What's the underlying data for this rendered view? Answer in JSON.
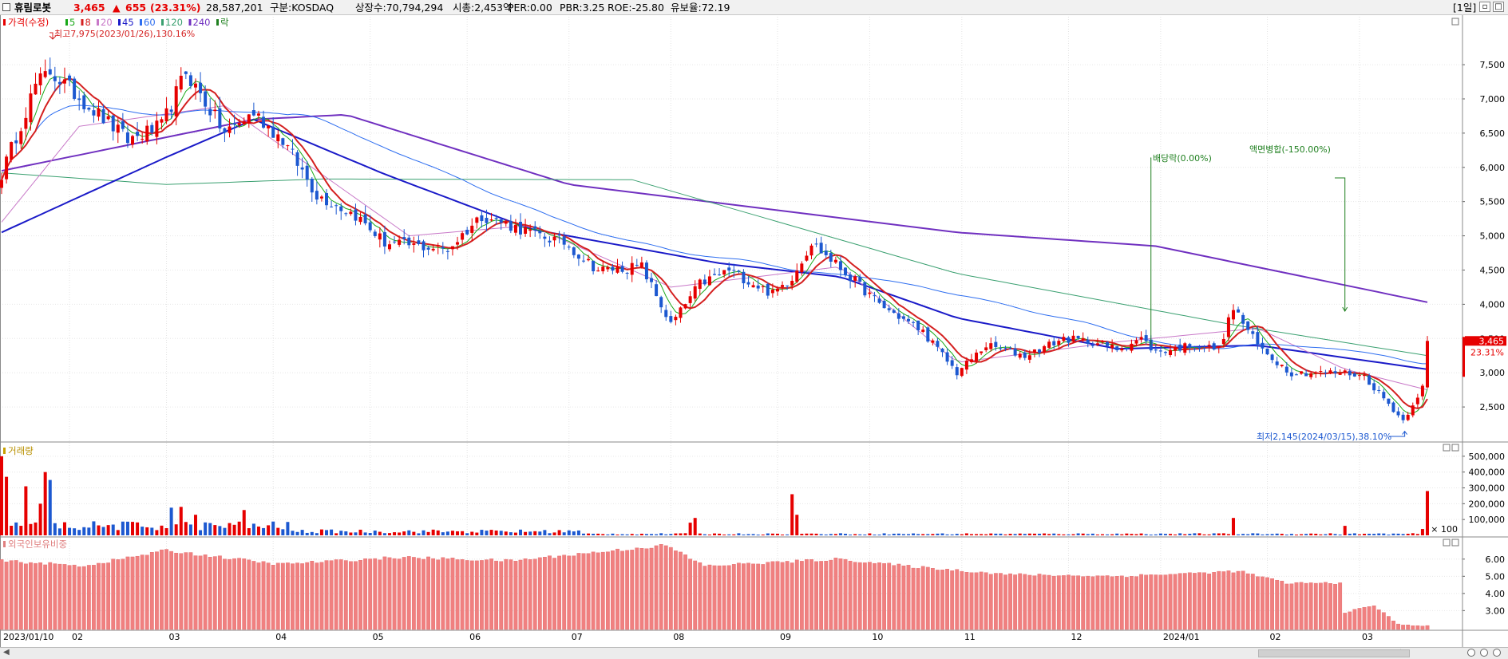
{
  "header": {
    "name": "휴림로봇",
    "price": "3,465",
    "change_arrow": "▲",
    "change": "655",
    "change_pct": "(23.31%)",
    "volume": "28,587,201",
    "market": "구분:KOSDAQ",
    "shares": "상장수:70,794,294",
    "mktcap": "시총:2,453억",
    "per": "PER:0.00",
    "pbr": "PBR:3.25",
    "roe": "ROE:-25.80",
    "float": "유보율:72.19",
    "period": "[1일]",
    "up_color": "#e60000",
    "down_color": "#1c58d0"
  },
  "legend": {
    "price_label": "가격(수정)",
    "ma_items": [
      {
        "label": "5",
        "color": "#18a818"
      },
      {
        "label": "8",
        "color": "#d42020"
      },
      {
        "label": "20",
        "color": "#c878c8"
      },
      {
        "label": "45",
        "color": "#1a1ac8"
      },
      {
        "label": "60",
        "color": "#2e6ef0"
      },
      {
        "label": "120",
        "color": "#3aa070"
      },
      {
        "label": "240",
        "color": "#7030c0"
      },
      {
        "label": "락",
        "color": "#208020"
      }
    ],
    "volume_label": "거래량",
    "foreign_label": "외국인보유비중"
  },
  "annotations": {
    "high": "최고7,975(2023/01/26),130.16%",
    "low": "최저2,145(2024/03/15),38.10%",
    "dividend": "배당락(0.00%)",
    "merge": "액면병합(-150.00%)"
  },
  "current_price_tag": {
    "price": "3,465",
    "pct": "23.31%"
  },
  "chart_data": [
    {
      "type": "candlestick",
      "title": "가격(수정)",
      "ylim": [
        2000,
        8200
      ],
      "yticks": [
        2500,
        3000,
        3500,
        4000,
        4500,
        5000,
        5500,
        6000,
        6500,
        7000,
        7500
      ],
      "ytick_labels": [
        "2,500",
        "3,000",
        "3,500",
        "4,000",
        "4,500",
        "5,000",
        "5,500",
        "6,000",
        "6,500",
        "7,000",
        "7,500"
      ],
      "close_path": [
        [
          "2023-01-10",
          5900
        ],
        [
          "2023-01-19",
          7200
        ],
        [
          "2023-01-26",
          7400
        ],
        [
          "2023-02-07",
          6900
        ],
        [
          "2023-02-17",
          6400
        ],
        [
          "2023-02-28",
          6600
        ],
        [
          "2023-03-08",
          7400
        ],
        [
          "2023-03-20",
          6500
        ],
        [
          "2023-03-28",
          6800
        ],
        [
          "2023-04-05",
          6400
        ],
        [
          "2023-04-14",
          5600
        ],
        [
          "2023-04-26",
          5300
        ],
        [
          "2023-05-08",
          4900
        ],
        [
          "2023-05-25",
          4800
        ],
        [
          "2023-06-07",
          5300
        ],
        [
          "2023-06-21",
          5050
        ],
        [
          "2023-06-30",
          4900
        ],
        [
          "2023-07-11",
          4500
        ],
        [
          "2023-07-24",
          4550
        ],
        [
          "2023-08-01",
          3700
        ],
        [
          "2023-08-09",
          4300
        ],
        [
          "2023-08-18",
          4500
        ],
        [
          "2023-08-31",
          4150
        ],
        [
          "2023-09-06",
          4400
        ],
        [
          "2023-09-12",
          4900
        ],
        [
          "2023-09-22",
          4400
        ],
        [
          "2023-10-06",
          4000
        ],
        [
          "2023-10-20",
          3600
        ],
        [
          "2023-10-31",
          3000
        ],
        [
          "2023-11-08",
          3400
        ],
        [
          "2023-11-20",
          3250
        ],
        [
          "2023-11-30",
          3500
        ],
        [
          "2023-12-08",
          3450
        ],
        [
          "2023-12-15",
          3350
        ],
        [
          "2023-12-22",
          3500
        ],
        [
          "2023-12-28",
          3300
        ],
        [
          "2024-01-10",
          3400
        ],
        [
          "2024-01-18",
          3350
        ],
        [
          "2024-01-23",
          3950
        ],
        [
          "2024-01-30",
          3400
        ],
        [
          "2024-02-06",
          3100
        ],
        [
          "2024-02-08",
          3000
        ],
        [
          "2024-02-27",
          3000
        ],
        [
          "2024-03-05",
          2950
        ],
        [
          "2024-03-15",
          2300
        ],
        [
          "2024-03-21",
          2800
        ],
        [
          "2024-03-22",
          3465
        ]
      ],
      "ma_levels": {
        "ma240": [
          [
            "2023-01-10",
            5950
          ],
          [
            "2023-03-28",
            6700
          ],
          [
            "2023-04-24",
            6770
          ],
          [
            "2023-07-03",
            5750
          ],
          [
            "2023-10-31",
            5050
          ],
          [
            "2023-12-28",
            4850
          ],
          [
            "2024-03-22",
            4030
          ]
        ],
        "ma120": [
          [
            "2023-01-10",
            5920
          ],
          [
            "2023-03-01",
            5750
          ],
          [
            "2023-04-17",
            5830
          ],
          [
            "2023-07-20",
            5820
          ],
          [
            "2023-10-31",
            4450
          ],
          [
            "2024-01-23",
            3700
          ],
          [
            "2024-03-22",
            3250
          ]
        ],
        "ma45": [
          [
            "2023-01-10",
            5050
          ],
          [
            "2023-03-01",
            6150
          ],
          [
            "2023-03-28",
            6700
          ],
          [
            "2023-05-08",
            5900
          ],
          [
            "2023-06-21",
            5100
          ],
          [
            "2023-08-16",
            4600
          ],
          [
            "2023-09-20",
            4400
          ],
          [
            "2023-10-31",
            3800
          ],
          [
            "2023-12-15",
            3350
          ],
          [
            "2024-01-30",
            3400
          ],
          [
            "2024-03-22",
            3050
          ]
        ],
        "ma20": [
          [
            "2023-01-10",
            5200
          ],
          [
            "2023-02-03",
            6600
          ],
          [
            "2023-03-20",
            6900
          ],
          [
            "2023-05-15",
            5000
          ],
          [
            "2023-06-21",
            5150
          ],
          [
            "2023-08-01",
            4250
          ],
          [
            "2023-09-20",
            4550
          ],
          [
            "2023-10-31",
            3150
          ],
          [
            "2023-12-15",
            3450
          ],
          [
            "2024-01-30",
            3650
          ],
          [
            "2024-02-27",
            3050
          ],
          [
            "2024-03-22",
            2750
          ]
        ]
      },
      "annotations": {
        "high": {
          "date": "2023-01-26",
          "value": 7975
        },
        "low": {
          "date": "2024-03-15",
          "value": 2145
        },
        "dividend_date": "2023-12-27",
        "merge_date": "2024-02-27"
      }
    },
    {
      "type": "bar",
      "title": "거래량",
      "ylim": [
        0,
        580000
      ],
      "yticks": [
        100000,
        200000,
        300000,
        400000,
        500000
      ],
      "ytick_labels": [
        "100,000",
        "200,000",
        "300,000",
        "400,000",
        "500,000"
      ],
      "unit_label": "× 100",
      "spikes": [
        [
          "2023-01-10",
          500000
        ],
        [
          "2023-01-11",
          370000
        ],
        [
          "2023-01-17",
          310000
        ],
        [
          "2023-01-20",
          200000
        ],
        [
          "2023-01-25",
          400000
        ],
        [
          "2023-01-26",
          350000
        ],
        [
          "2023-03-03",
          175000
        ],
        [
          "2023-03-07",
          180000
        ],
        [
          "2023-03-10",
          130000
        ],
        [
          "2023-03-24",
          160000
        ],
        [
          "2023-08-07",
          80000
        ],
        [
          "2023-08-08",
          110000
        ],
        [
          "2023-09-06",
          260000
        ],
        [
          "2023-09-07",
          130000
        ],
        [
          "2024-01-23",
          110000
        ],
        [
          "2024-02-27",
          60000
        ],
        [
          "2024-03-21",
          40000
        ],
        [
          "2024-03-22",
          280000
        ]
      ]
    },
    {
      "type": "bar",
      "title": "외국인보유비중",
      "ylim": [
        1.9,
        7.2
      ],
      "yticks": [
        3.0,
        4.0,
        5.0,
        6.0
      ],
      "ytick_labels": [
        "3.00",
        "4.00",
        "5.00",
        "6.00"
      ],
      "levels": [
        [
          "2023-01-10",
          5.9
        ],
        [
          "2023-02-06",
          5.6
        ],
        [
          "2023-03-02",
          6.5
        ],
        [
          "2023-04-04",
          5.7
        ],
        [
          "2023-05-11",
          6.1
        ],
        [
          "2023-06-15",
          5.9
        ],
        [
          "2023-07-31",
          6.8
        ],
        [
          "2023-08-10",
          5.6
        ],
        [
          "2023-09-20",
          6.0
        ],
        [
          "2023-10-16",
          5.6
        ],
        [
          "2023-11-15",
          5.1
        ],
        [
          "2023-12-15",
          5.0
        ],
        [
          "2024-01-15",
          5.2
        ],
        [
          "2024-01-24",
          5.3
        ],
        [
          "2024-02-07",
          4.6
        ],
        [
          "2024-02-26",
          4.6
        ],
        [
          "2024-02-27",
          2.9
        ],
        [
          "2024-03-07",
          3.3
        ],
        [
          "2024-03-14",
          2.2
        ],
        [
          "2024-03-22",
          2.1
        ]
      ]
    }
  ],
  "x_axis": {
    "labels": [
      {
        "date": "2023-01-10",
        "label": "2023/01/10"
      },
      {
        "date": "2023-02-01",
        "label": "02"
      },
      {
        "date": "2023-03-02",
        "label": "03"
      },
      {
        "date": "2023-04-03",
        "label": "04"
      },
      {
        "date": "2023-05-02",
        "label": "05"
      },
      {
        "date": "2023-06-01",
        "label": "06"
      },
      {
        "date": "2023-07-03",
        "label": "07"
      },
      {
        "date": "2023-08-01",
        "label": "08"
      },
      {
        "date": "2023-09-01",
        "label": "09"
      },
      {
        "date": "2023-10-04",
        "label": "10"
      },
      {
        "date": "2023-11-01",
        "label": "11"
      },
      {
        "date": "2023-12-01",
        "label": "12"
      },
      {
        "date": "2024-01-02",
        "label": "2024/01"
      },
      {
        "date": "2024-02-01",
        "label": "02"
      },
      {
        "date": "2024-03-04",
        "label": "03"
      }
    ]
  }
}
